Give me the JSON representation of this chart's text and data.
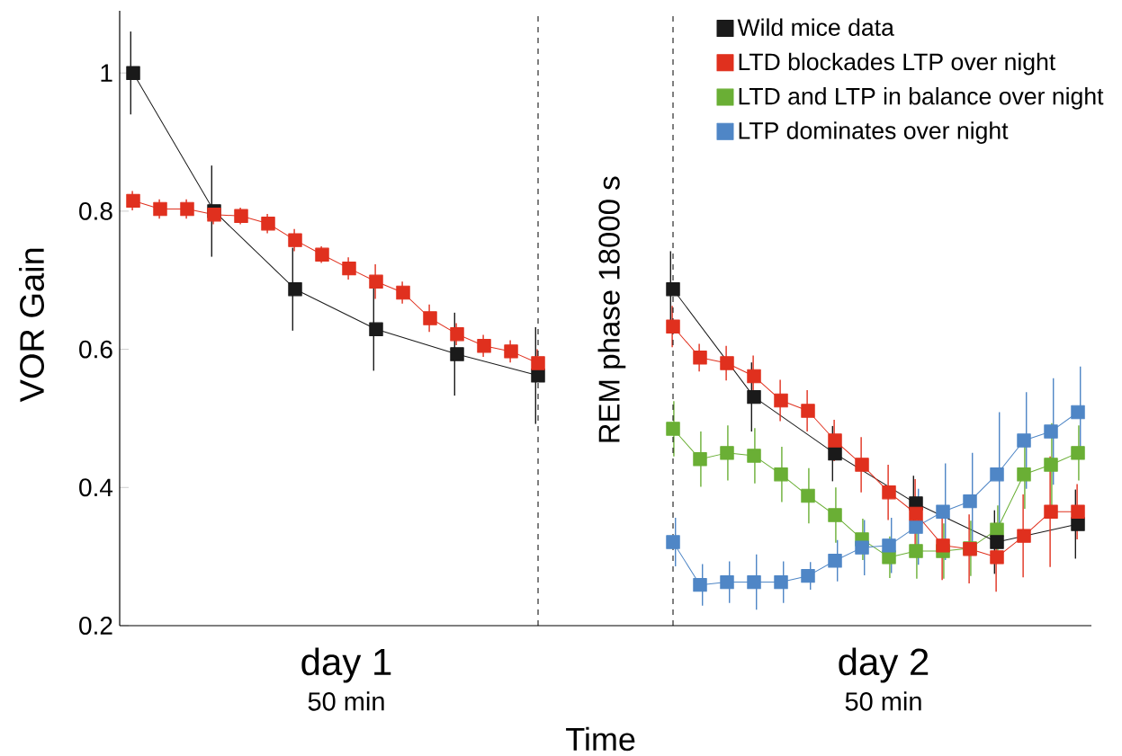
{
  "chart_data": {
    "type": "line",
    "xlabel": "Time",
    "ylabel": "VOR Gain",
    "categories": [
      null,
      null,
      null,
      null,
      null,
      null,
      null,
      null,
      null,
      null,
      null,
      null,
      null,
      null,
      null,
      null,
      null,
      null,
      null,
      null,
      null,
      null,
      null,
      null,
      null,
      null,
      null,
      null,
      null,
      null,
      null,
      null,
      null,
      null,
      null,
      null
    ],
    "series": [
      {
        "name": "Wild mice data",
        "color": "#1a1a1a",
        "values": [
          1.0,
          null,
          null,
          0.8,
          null,
          null,
          0.687,
          null,
          null,
          0.629,
          null,
          null,
          0.593,
          null,
          null,
          0.562,
          null,
          null,
          null,
          null,
          null,
          null,
          null,
          null,
          null,
          null,
          null,
          null,
          null,
          null,
          null,
          null,
          null,
          null,
          null,
          null
        ],
        "errors": [
          0.06,
          null,
          null,
          0.066,
          null,
          null,
          0.06,
          null,
          null,
          0.06,
          null,
          null,
          0.06,
          null,
          null,
          0.07,
          null,
          null,
          null,
          null,
          null,
          null,
          null,
          null,
          null,
          null,
          null,
          null,
          null,
          null,
          null,
          null,
          null,
          null,
          null,
          null
        ]
      },
      {
        "name": "LTD blockades LTP over night",
        "color": "#e0301e",
        "values": [
          0.815,
          0.803,
          0.803,
          0.795,
          0.793,
          0.782,
          0.758,
          0.737,
          0.717,
          0.698,
          0.682,
          0.645,
          0.622,
          0.605,
          0.597,
          0.58,
          null,
          null,
          null,
          null,
          null,
          null,
          null,
          null,
          null,
          null,
          null,
          null,
          null,
          null,
          null,
          null,
          null,
          null,
          null,
          null
        ],
        "errors": [
          0.014,
          0.014,
          0.014,
          0.014,
          0.012,
          0.014,
          0.016,
          0.012,
          0.016,
          0.025,
          0.016,
          0.02,
          0.016,
          0.016,
          0.016,
          0.02,
          null,
          null,
          null,
          null,
          null,
          null,
          null,
          null,
          null,
          null,
          null,
          null,
          null,
          null,
          null,
          null,
          null,
          null,
          null,
          null
        ]
      },
      {
        "name": "LTD and LTP in balance over night",
        "color": "#6aaf35",
        "values": [
          null,
          null,
          null,
          null,
          null,
          null,
          null,
          null,
          null,
          null,
          null,
          null,
          null,
          null,
          null,
          null,
          null,
          null,
          null,
          null,
          0.485,
          0.441,
          0.45,
          0.446,
          0.419,
          0.388,
          0.36,
          0.325,
          0.299,
          0.308,
          0.308,
          0.312,
          0.339,
          0.419,
          0.433,
          0.45
        ],
        "errors": [
          null,
          null,
          null,
          null,
          null,
          null,
          null,
          null,
          null,
          null,
          null,
          null,
          null,
          null,
          null,
          null,
          null,
          null,
          null,
          null,
          0.04,
          0.04,
          0.04,
          0.04,
          0.04,
          0.04,
          0.04,
          0.03,
          0.03,
          0.04,
          0.04,
          0.04,
          0.035,
          0.05,
          0.06,
          0.04
        ]
      },
      {
        "name": "LTP dominates over night",
        "color": "#4f86c6",
        "values": [
          null,
          null,
          null,
          null,
          null,
          null,
          null,
          null,
          null,
          null,
          null,
          null,
          null,
          null,
          null,
          null,
          null,
          null,
          null,
          null,
          0.321,
          0.259,
          0.263,
          0.263,
          0.263,
          0.272,
          0.294,
          0.313,
          0.316,
          0.343,
          0.365,
          0.38,
          0.419,
          0.468,
          0.481,
          0.509
        ],
        "errors": [
          null,
          null,
          null,
          null,
          null,
          null,
          null,
          null,
          null,
          null,
          null,
          null,
          null,
          null,
          null,
          null,
          null,
          null,
          null,
          null,
          0.035,
          0.03,
          0.03,
          0.04,
          0.03,
          0.02,
          0.03,
          0.04,
          0.04,
          0.055,
          0.07,
          0.07,
          0.09,
          0.07,
          0.077,
          0.066
        ]
      },
      {
        "color": "#1a1a1a",
        "values": [
          null,
          null,
          null,
          null,
          null,
          null,
          null,
          null,
          null,
          null,
          null,
          null,
          null,
          null,
          null,
          null,
          null,
          null,
          null,
          null,
          0.687,
          null,
          null,
          0.531,
          null,
          null,
          0.449,
          null,
          null,
          0.377,
          null,
          null,
          0.321,
          null,
          null,
          0.347
        ],
        "errors": [
          null,
          null,
          null,
          null,
          null,
          null,
          null,
          null,
          null,
          null,
          null,
          null,
          null,
          null,
          null,
          null,
          null,
          null,
          null,
          null,
          0.055,
          null,
          null,
          0.05,
          null,
          null,
          0.04,
          null,
          null,
          0.04,
          null,
          null,
          0.046,
          null,
          null,
          0.05
        ]
      },
      {
        "color": "#e0301e",
        "values": [
          null,
          null,
          null,
          null,
          null,
          null,
          null,
          null,
          null,
          null,
          null,
          null,
          null,
          null,
          null,
          null,
          null,
          null,
          null,
          null,
          0.633,
          0.588,
          0.58,
          0.561,
          0.526,
          0.511,
          0.468,
          0.433,
          0.393,
          0.362,
          0.316,
          0.311,
          0.299,
          0.33,
          0.365,
          0.365
        ],
        "errors": [
          null,
          null,
          null,
          null,
          null,
          null,
          null,
          null,
          null,
          null,
          null,
          null,
          null,
          null,
          null,
          null,
          null,
          null,
          null,
          null,
          0.03,
          0.02,
          0.025,
          0.03,
          0.03,
          0.03,
          0.03,
          0.04,
          0.04,
          0.05,
          0.05,
          0.05,
          0.05,
          0.06,
          0.08,
          0.04
        ]
      }
    ],
    "ylim": [
      0.2,
      1.09
    ],
    "yticks": [
      0.2,
      0.4,
      0.6,
      0.8,
      1
    ],
    "tick_labels": "y",
    "legend": "top right",
    "marker": "square",
    "line_style": "solid",
    "annotations": [
      "REM phase  18000 s",
      "day 1",
      "50 min",
      "day 2",
      "50 min"
    ]
  }
}
